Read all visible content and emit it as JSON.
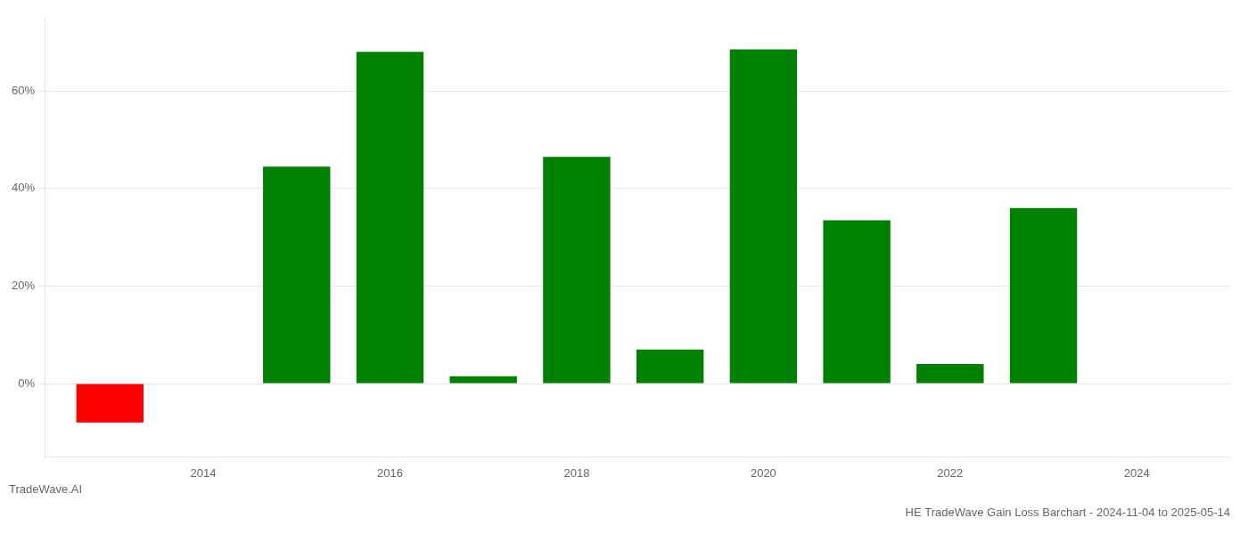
{
  "chart_data": {
    "type": "bar",
    "title": "HE TradeWave Gain Loss Barchart - 2024-11-04 to 2025-05-14",
    "annotations": [
      "TradeWave.AI"
    ],
    "x": [
      2013,
      2015,
      2016,
      2017,
      2018,
      2019,
      2020,
      2021,
      2022,
      2023
    ],
    "values": [
      -8.0,
      44.5,
      68.0,
      1.5,
      46.5,
      7.0,
      68.5,
      33.5,
      4.0,
      36.0
    ],
    "colors": [
      "#ff0000",
      "#008000",
      "#008000",
      "#008000",
      "#008000",
      "#008000",
      "#008000",
      "#008000",
      "#008000",
      "#008000"
    ],
    "xlim": [
      2012.3,
      2025.0
    ],
    "xticks": [
      2014,
      2016,
      2018,
      2020,
      2022,
      2024
    ],
    "ylim": [
      -15,
      75
    ],
    "yticks": [
      {
        "value": 0,
        "label": "0%"
      },
      {
        "value": 20,
        "label": "20%"
      },
      {
        "value": 40,
        "label": "40%"
      },
      {
        "value": 60,
        "label": "60%"
      }
    ],
    "grid": true
  }
}
